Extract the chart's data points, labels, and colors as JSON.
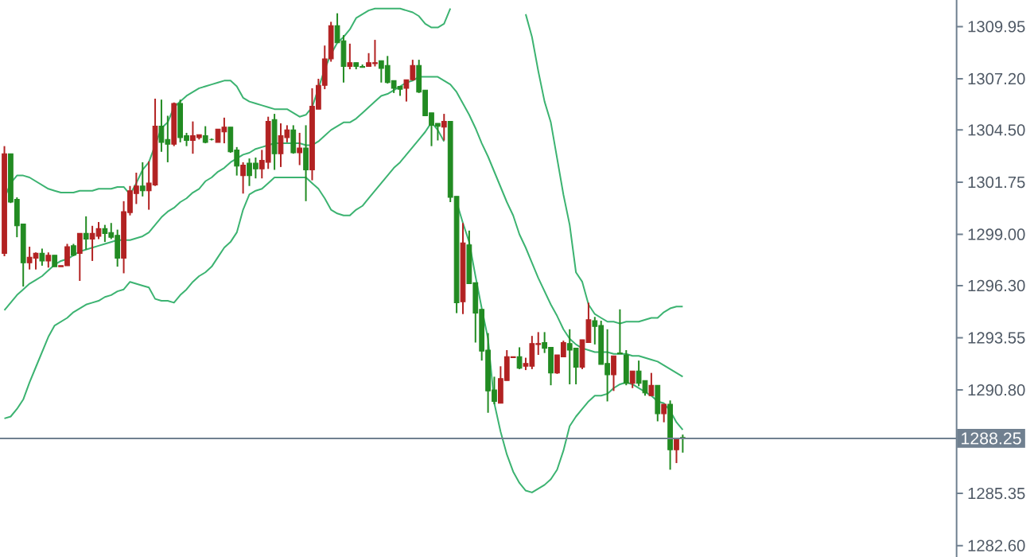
{
  "chart_data": {
    "type": "candlestick",
    "categories": [
      null,
      null,
      null,
      null,
      null,
      null,
      null,
      null,
      null,
      null,
      null,
      null,
      null,
      null,
      null,
      null,
      null,
      null,
      null,
      null,
      null,
      null,
      null,
      null,
      null,
      null,
      null,
      null,
      null,
      null,
      null,
      null,
      null,
      null,
      null,
      null,
      null,
      null,
      null,
      null,
      null,
      null,
      null,
      null,
      null,
      null,
      null,
      null,
      null,
      null,
      null,
      null,
      null,
      null,
      null,
      null,
      null,
      null,
      null,
      null,
      null,
      null,
      null,
      null,
      null,
      null,
      null,
      null,
      null,
      null,
      null,
      null,
      null,
      null,
      null,
      null,
      null,
      null,
      null,
      null,
      null,
      null,
      null,
      null,
      null,
      null,
      null,
      null,
      null,
      null,
      null,
      null,
      null,
      null,
      null,
      null,
      null,
      null,
      null,
      null,
      null,
      null,
      null,
      null,
      null,
      null,
      null,
      null,
      null
    ],
    "ohlc": [
      [
        1298.0,
        1303.65,
        1297.85,
        1303.25
      ],
      [
        1303.25,
        1303.25,
        1300.65,
        1300.7
      ],
      [
        1300.85,
        1300.95,
        1298.85,
        1299.45
      ],
      [
        1299.55,
        1299.55,
        1296.25,
        1297.5
      ],
      [
        1297.5,
        1298.35,
        1297.15,
        1297.8
      ],
      [
        1297.75,
        1298.05,
        1297.15,
        1298.0
      ],
      [
        1298.0,
        1298.25,
        1297.35,
        1297.6
      ],
      [
        1297.6,
        1298.05,
        1297.25,
        1297.9
      ],
      [
        1297.9,
        1297.9,
        1297.3,
        1297.3
      ],
      [
        1297.3,
        1297.35,
        1297.3,
        1297.35
      ],
      [
        1297.35,
        1298.5,
        1297.35,
        1298.35
      ],
      [
        1298.4,
        1298.5,
        1297.85,
        1297.9
      ],
      [
        1298.0,
        1299.05,
        1296.55,
        1299.05
      ],
      [
        1299.05,
        1299.95,
        1298.2,
        1298.75
      ],
      [
        1298.75,
        1299.45,
        1297.6,
        1299.05
      ],
      [
        1298.9,
        1299.65,
        1298.75,
        1299.3
      ],
      [
        1299.3,
        1299.5,
        1298.6,
        1299.05
      ],
      [
        1299.1,
        1299.6,
        1298.75,
        1298.85
      ],
      [
        1298.95,
        1299.25,
        1297.3,
        1297.75
      ],
      [
        1297.75,
        1300.75,
        1296.95,
        1300.2
      ],
      [
        1300.15,
        1301.55,
        1300.0,
        1301.3
      ],
      [
        1301.15,
        1302.25,
        1300.6,
        1301.55
      ],
      [
        1301.55,
        1302.8,
        1301.0,
        1301.3
      ],
      [
        1301.3,
        1302.85,
        1300.3,
        1301.7
      ],
      [
        1301.6,
        1306.15,
        1301.55,
        1304.7
      ],
      [
        1304.7,
        1306.1,
        1303.35,
        1303.85
      ],
      [
        1304.0,
        1305.25,
        1302.8,
        1303.75
      ],
      [
        1303.75,
        1305.95,
        1303.65,
        1305.9
      ],
      [
        1305.9,
        1306.1,
        1303.85,
        1304.1
      ],
      [
        1304.2,
        1304.35,
        1303.65,
        1303.95
      ],
      [
        1303.95,
        1304.95,
        1303.25,
        1304.2
      ],
      [
        1304.1,
        1304.25,
        1304.0,
        1304.25
      ],
      [
        1304.2,
        1304.7,
        1303.8,
        1303.85
      ],
      [
        1304.0,
        1304.05,
        1303.95,
        1304.0
      ],
      [
        1303.85,
        1304.55,
        1303.85,
        1304.55
      ],
      [
        1304.4,
        1305.15,
        1303.8,
        1304.65
      ],
      [
        1304.65,
        1304.65,
        1303.3,
        1303.35
      ],
      [
        1303.45,
        1303.6,
        1302.1,
        1302.6
      ],
      [
        1302.1,
        1302.8,
        1301.15,
        1302.65
      ],
      [
        1302.75,
        1303.0,
        1301.55,
        1302.1
      ],
      [
        1302.75,
        1303.05,
        1301.95,
        1302.45
      ],
      [
        1302.45,
        1303.45,
        1301.95,
        1302.9
      ],
      [
        1302.8,
        1305.2,
        1302.45,
        1304.95
      ],
      [
        1305.05,
        1305.35,
        1302.4,
        1303.25
      ],
      [
        1303.25,
        1304.85,
        1302.55,
        1304.2
      ],
      [
        1304.1,
        1304.75,
        1303.85,
        1304.5
      ],
      [
        1304.5,
        1304.75,
        1303.25,
        1303.3
      ],
      [
        1303.3,
        1304.35,
        1302.65,
        1303.55
      ],
      [
        1303.55,
        1304.75,
        1300.75,
        1302.4
      ],
      [
        1302.4,
        1306.7,
        1301.85,
        1305.75
      ],
      [
        1305.6,
        1307.2,
        1305.6,
        1306.85
      ],
      [
        1306.85,
        1308.95,
        1306.65,
        1308.25
      ],
      [
        1308.25,
        1310.2,
        1308.1,
        1310.0
      ],
      [
        1310.0,
        1310.65,
        1309.1,
        1309.1
      ],
      [
        1309.2,
        1309.5,
        1307.0,
        1307.85
      ],
      [
        1307.85,
        1309.05,
        1307.7,
        1308.05
      ],
      [
        1308.05,
        1308.05,
        1307.7,
        1307.85
      ],
      [
        1307.85,
        1307.95,
        1307.8,
        1307.8
      ],
      [
        1307.85,
        1308.55,
        1307.85,
        1308.05
      ],
      [
        1308.0,
        1309.25,
        1307.85,
        1308.05
      ],
      [
        1308.15,
        1308.15,
        1307.0,
        1307.75
      ],
      [
        1307.9,
        1308.4,
        1306.95,
        1307.0
      ],
      [
        1307.1,
        1307.1,
        1306.45,
        1306.7
      ],
      [
        1306.8,
        1306.8,
        1306.3,
        1306.65
      ],
      [
        1306.7,
        1307.15,
        1306.0,
        1307.15
      ],
      [
        1307.15,
        1308.2,
        1307.1,
        1307.9
      ],
      [
        1307.9,
        1308.2,
        1306.45,
        1306.5
      ],
      [
        1306.6,
        1306.6,
        1305.25,
        1305.25
      ],
      [
        1305.4,
        1305.4,
        1303.65,
        1304.75
      ],
      [
        1304.85,
        1304.85,
        1303.95,
        1304.7
      ],
      [
        1304.65,
        1305.35,
        1303.95,
        1304.95
      ],
      [
        1304.95,
        1304.95,
        1300.7,
        1300.95
      ],
      [
        1301.0,
        1301.0,
        1294.85,
        1295.4
      ],
      [
        1295.45,
        1299.6,
        1294.8,
        1298.55
      ],
      [
        1298.45,
        1299.2,
        1296.4,
        1296.4
      ],
      [
        1296.45,
        1296.45,
        1293.3,
        1294.85
      ],
      [
        1295.05,
        1295.05,
        1292.35,
        1292.85
      ],
      [
        1292.9,
        1293.8,
        1289.6,
        1290.75
      ],
      [
        1290.8,
        1291.5,
        1290.05,
        1290.2
      ],
      [
        1290.1,
        1292.05,
        1290.1,
        1291.4
      ],
      [
        1291.3,
        1292.9,
        1291.3,
        1292.55
      ],
      [
        1292.5,
        1292.55,
        1292.5,
        1292.55
      ],
      [
        1292.55,
        1293.05,
        1291.9,
        1291.95
      ],
      [
        1292.05,
        1292.5,
        1291.85,
        1292.2
      ],
      [
        1292.05,
        1293.65,
        1291.9,
        1293.25
      ],
      [
        1293.2,
        1293.85,
        1292.65,
        1293.25
      ],
      [
        1293.3,
        1293.85,
        1292.75,
        1293.0
      ],
      [
        1293.05,
        1293.05,
        1291.05,
        1291.7
      ],
      [
        1291.7,
        1292.65,
        1291.65,
        1292.65
      ],
      [
        1292.55,
        1293.4,
        1292.55,
        1293.3
      ],
      [
        1293.25,
        1294.0,
        1291.1,
        1292.9
      ],
      [
        1293.0,
        1293.0,
        1291.1,
        1292.0
      ],
      [
        1292.0,
        1293.45,
        1291.9,
        1293.45
      ],
      [
        1293.3,
        1295.4,
        1293.3,
        1294.5
      ],
      [
        1294.45,
        1294.65,
        1293.2,
        1294.15
      ],
      [
        1294.2,
        1294.45,
        1292.15,
        1292.15
      ],
      [
        1292.2,
        1294.0,
        1290.2,
        1291.6
      ],
      [
        1291.6,
        1292.6,
        1290.75,
        1292.6
      ],
      [
        1292.75,
        1295.05,
        1292.7,
        1292.7
      ],
      [
        1292.65,
        1292.9,
        1291.05,
        1291.15
      ],
      [
        1291.15,
        1291.8,
        1290.9,
        1291.8
      ],
      [
        1291.8,
        1292.35,
        1291.0,
        1291.15
      ],
      [
        1291.3,
        1291.3,
        1290.5,
        1290.65
      ],
      [
        1290.5,
        1291.7,
        1290.5,
        1291.05
      ],
      [
        1291.05,
        1291.05,
        1289.15,
        1289.55
      ],
      [
        1289.55,
        1290.05,
        1289.1,
        1290.05
      ],
      [
        1290.05,
        1290.25,
        1286.6,
        1287.65
      ],
      [
        1287.65,
        1288.2,
        1286.95,
        1288.2
      ],
      [
        1288.3,
        1288.45,
        1287.5,
        1288.25
      ]
    ],
    "colors": [
      "#b22222",
      "#228b22",
      "#228b22",
      "#228b22",
      "#b22222",
      "#b22222",
      "#228b22",
      "#b22222",
      "#228b22",
      "#b22222",
      "#b22222",
      "#228b22",
      "#b22222",
      "#228b22",
      "#b22222",
      "#b22222",
      "#228b22",
      "#228b22",
      "#228b22",
      "#b22222",
      "#b22222",
      "#b22222",
      "#228b22",
      "#b22222",
      "#b22222",
      "#228b22",
      "#228b22",
      "#b22222",
      "#228b22",
      "#228b22",
      "#b22222",
      "#b22222",
      "#228b22",
      "#228b22",
      "#b22222",
      "#b22222",
      "#228b22",
      "#228b22",
      "#b22222",
      "#228b22",
      "#228b22",
      "#b22222",
      "#b22222",
      "#228b22",
      "#b22222",
      "#b22222",
      "#228b22",
      "#b22222",
      "#228b22",
      "#b22222",
      "#b22222",
      "#b22222",
      "#b22222",
      "#228b22",
      "#228b22",
      "#b22222",
      "#228b22",
      "#228b22",
      "#b22222",
      "#b22222",
      "#228b22",
      "#228b22",
      "#228b22",
      "#228b22",
      "#b22222",
      "#b22222",
      "#228b22",
      "#228b22",
      "#228b22",
      "#228b22",
      "#b22222",
      "#228b22",
      "#228b22",
      "#b22222",
      "#228b22",
      "#228b22",
      "#228b22",
      "#228b22",
      "#228b22",
      "#b22222",
      "#b22222",
      "#b22222",
      "#228b22",
      "#b22222",
      "#b22222",
      "#b22222",
      "#228b22",
      "#228b22",
      "#b22222",
      "#b22222",
      "#228b22",
      "#228b22",
      "#b22222",
      "#b22222",
      "#228b22",
      "#228b22",
      "#228b22",
      "#b22222",
      "#228b22",
      "#228b22",
      "#b22222",
      "#228b22",
      "#228b22",
      "#b22222",
      "#228b22",
      "#b22222",
      "#228b22",
      "#b22222",
      "#228b22"
    ],
    "series": [
      {
        "type": "line",
        "color": "#3cb371",
        "values": [
          1300.9,
          1301.7,
          1302.1,
          1302.1,
          1302.0,
          1301.8,
          1301.6,
          1301.4,
          1301.3,
          1301.2,
          1301.2,
          1301.2,
          1301.3,
          1301.3,
          1301.3,
          1301.4,
          1301.4,
          1301.4,
          1301.5,
          1301.5,
          1301.1,
          1301.7,
          1302.4,
          1302.8,
          1303.7,
          1304.6,
          1304.9,
          1305.7,
          1306.0,
          1306.3,
          1306.5,
          1306.7,
          1306.8,
          1306.9,
          1307.0,
          1307.1,
          1307.1,
          1306.8,
          1306.2,
          1306.0,
          1305.9,
          1305.8,
          1305.7,
          1305.6,
          1305.6,
          1305.6,
          1305.4,
          1305.2,
          1305.3,
          1305.7,
          1306.7,
          1307.7,
          1308.5,
          1309.1,
          1309.4,
          1309.8,
          1310.4,
          1310.6,
          1310.8,
          1310.9,
          1310.9,
          1310.9,
          1310.9,
          1310.9,
          1310.8,
          1310.7,
          1310.5,
          1310.1,
          1309.9,
          1309.9,
          1310.1,
          1310.9,
          null,
          null,
          null,
          null,
          null,
          null,
          null,
          null,
          null,
          null,
          null,
          1310.6,
          1309.4,
          1307.6,
          1306.0,
          1304.9,
          1303.0,
          1301.1,
          1299.5,
          1297.0,
          1296.5,
          1295.3,
          1294.8,
          1294.6,
          1294.4,
          1294.4,
          1294.3,
          1294.4,
          1294.4,
          1294.4,
          1294.5,
          1294.6,
          1294.6,
          1294.9,
          1295.1,
          1295.2,
          1295.2
        ]
      },
      {
        "type": "line",
        "color": "#3cb371",
        "values": [
          1295.0,
          1295.4,
          1295.8,
          1296.1,
          1296.4,
          1296.6,
          1296.8,
          1297.1,
          1297.4,
          1297.6,
          1297.7,
          1297.9,
          1298.1,
          1298.2,
          1298.3,
          1298.4,
          1298.5,
          1298.6,
          1298.7,
          1298.7,
          1298.7,
          1298.8,
          1298.9,
          1299.1,
          1299.5,
          1299.9,
          1300.2,
          1300.4,
          1300.7,
          1300.9,
          1301.2,
          1301.4,
          1301.8,
          1302.0,
          1302.3,
          1302.5,
          1302.8,
          1303.0,
          1303.2,
          1303.3,
          1303.5,
          1303.6,
          1303.7,
          1303.8,
          1303.8,
          1303.8,
          1303.8,
          1303.8,
          1303.7,
          1303.7,
          1303.9,
          1304.2,
          1304.5,
          1304.7,
          1304.9,
          1304.9,
          1305.1,
          1305.4,
          1305.7,
          1306.0,
          1306.3,
          1306.4,
          1306.6,
          1306.8,
          1307.0,
          1307.1,
          1307.3,
          1307.3,
          1307.3,
          1307.3,
          1307.1,
          1306.9,
          1306.5,
          1305.9,
          1305.3,
          1304.6,
          1303.8,
          1303.1,
          1302.3,
          1301.5,
          1300.7,
          1300.0,
          1299.0,
          1298.3,
          1297.5,
          1296.7,
          1296.0,
          1295.3,
          1294.7,
          1294.0,
          1293.5,
          1293.2,
          1293.0,
          1292.9,
          1292.8,
          1292.8,
          1292.8,
          1292.7,
          1292.7,
          1292.7,
          1292.6,
          1292.6,
          1292.5,
          1292.4,
          1292.3,
          1292.1,
          1291.9,
          1291.7,
          1291.5
        ]
      },
      {
        "type": "line",
        "color": "#3cb371",
        "values": [
          1289.3,
          1289.4,
          1289.8,
          1290.3,
          1291.2,
          1292.0,
          1292.8,
          1293.6,
          1294.2,
          1294.4,
          1294.6,
          1294.9,
          1295.1,
          1295.3,
          1295.4,
          1295.5,
          1295.7,
          1295.8,
          1296.0,
          1296.1,
          1296.5,
          1296.4,
          1296.3,
          1296.2,
          1295.6,
          1295.5,
          1295.5,
          1295.4,
          1295.8,
          1296.1,
          1296.5,
          1296.8,
          1297.0,
          1297.3,
          1297.8,
          1298.3,
          1298.6,
          1299.1,
          1300.3,
          1301.1,
          1301.3,
          1301.4,
          1301.7,
          1302.0,
          1302.0,
          1302.0,
          1302.0,
          1302.0,
          1302.0,
          1301.7,
          1301.4,
          1300.9,
          1300.3,
          1300.1,
          1300.0,
          1300.0,
          1300.3,
          1300.5,
          1300.9,
          1301.3,
          1301.7,
          1302.1,
          1302.5,
          1302.8,
          1303.2,
          1303.6,
          1304.0,
          1304.4,
          1304.9,
          1304.5,
          1303.9,
          null,
          1300.7,
          1299.6,
          1298.6,
          1296.8,
          1295.1,
          1293.5,
          1290.1,
          1288.6,
          1287.4,
          1286.5,
          1285.9,
          1285.5,
          1285.4,
          1285.6,
          1285.8,
          1286.1,
          1286.6,
          1287.6,
          1288.9,
          1289.4,
          1289.8,
          1290.2,
          1290.5,
          1290.5,
          1290.6,
          1290.9,
          1291.1,
          1291.2,
          1291.1,
          1290.9,
          1290.7,
          1290.5,
          1290.2,
          1290.1,
          1289.7,
          1289.1,
          1288.7
        ]
      }
    ],
    "ylim": [
      1282.0,
      1311.35
    ],
    "yticks": [
      {
        "value": 1282.6,
        "label": "1282.60"
      },
      1285.35,
      {
        "value": 1290.8,
        "label": "1290.80"
      },
      1293.55,
      {
        "value": 1296.3,
        "label": "1296.30"
      },
      {
        "value": 1299.0,
        "label": "1299.00"
      },
      1301.75,
      {
        "value": 1304.5,
        "label": "1304.50"
      },
      {
        "value": 1307.2,
        "label": "1307.20"
      },
      1309.95
    ],
    "ref_lines": [
      {
        "axis": "y",
        "value": 1288.25,
        "label": "1288.25",
        "color": "#708090"
      }
    ],
    "tick_labels": "y"
  }
}
